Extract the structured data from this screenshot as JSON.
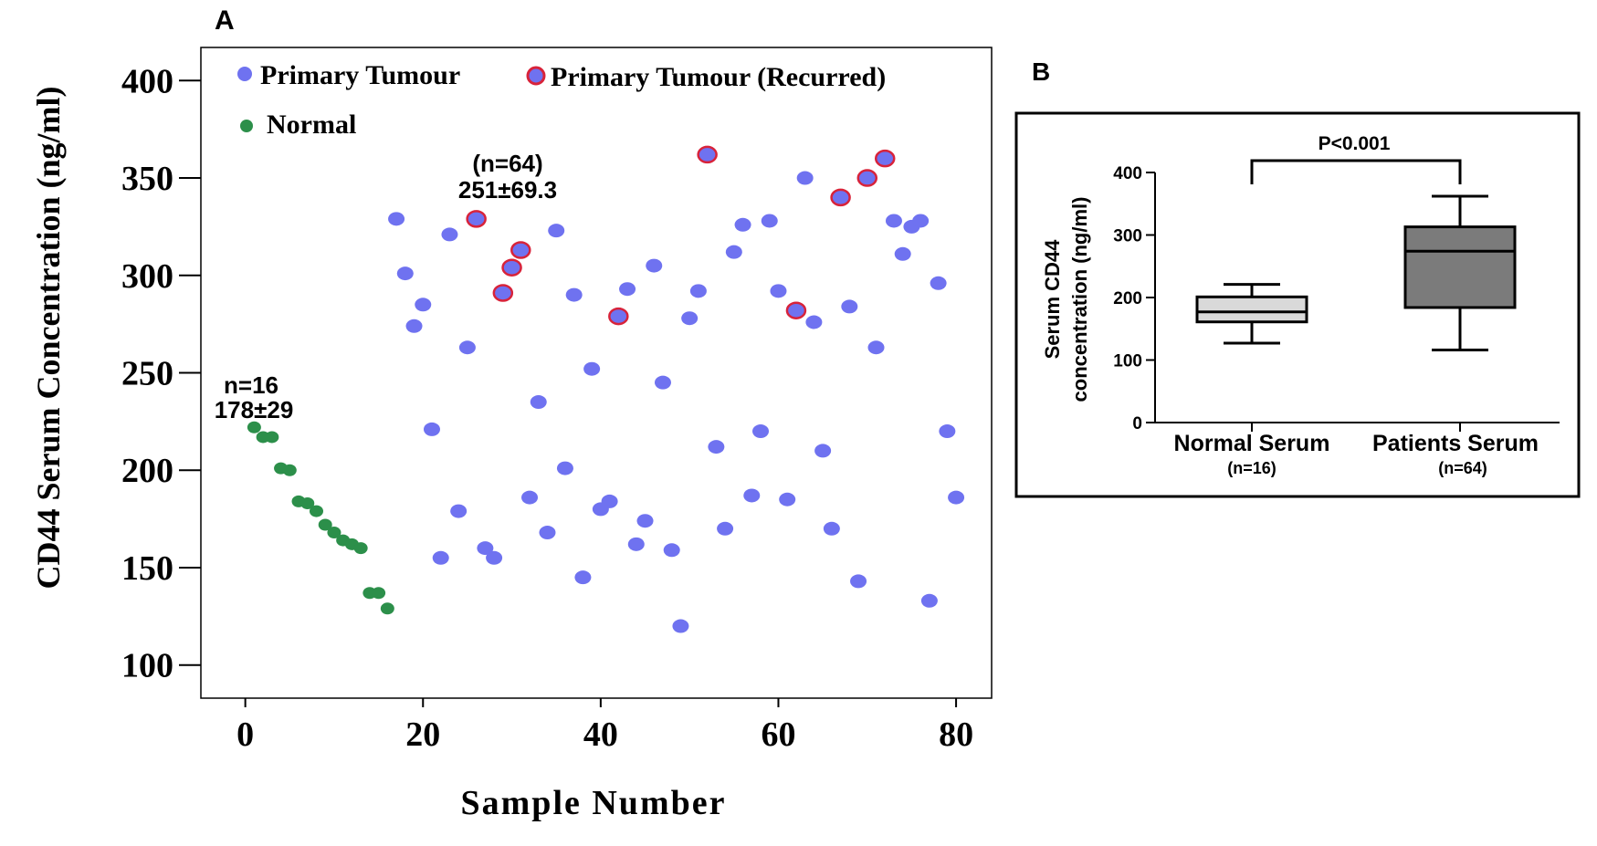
{
  "colors": {
    "primary": "#6f72f0",
    "normal": "#2c8f4a",
    "recurred_edge": "#d8233a",
    "box_normal": "#d9d9d9",
    "box_patients": "#7b7b7b",
    "frame": "#000000"
  },
  "chart_data": [
    {
      "panel_label": "A",
      "type": "scatter",
      "xlabel": "Sample Number",
      "ylabel": "CD44 Serum Concentration (ng/ml)",
      "xlim": [
        -5,
        84
      ],
      "ylim": [
        83,
        417
      ],
      "xticks": [
        0,
        20,
        40,
        60,
        80
      ],
      "yticks": [
        100,
        150,
        200,
        250,
        300,
        350,
        400
      ],
      "legend": {
        "primary": "Primary Tumour",
        "recurred": "Primary Tumour (Recurred)",
        "normal": "Normal"
      },
      "annotations": {
        "normal_n": "n=16",
        "normal_stats": "178±29",
        "tumour_n": "(n=64)",
        "tumour_stats": "251±69.3"
      },
      "series": [
        {
          "name": "Normal",
          "points": [
            [
              1,
              222
            ],
            [
              2,
              217
            ],
            [
              3,
              217
            ],
            [
              4,
              201
            ],
            [
              5,
              200
            ],
            [
              6,
              184
            ],
            [
              7,
              183
            ],
            [
              8,
              179
            ],
            [
              9,
              172
            ],
            [
              10,
              168
            ],
            [
              11,
              164
            ],
            [
              12,
              162
            ],
            [
              13,
              160
            ],
            [
              14,
              137
            ],
            [
              15,
              137
            ],
            [
              16,
              129
            ]
          ]
        },
        {
          "name": "Primary Tumour",
          "points": [
            [
              17,
              329
            ],
            [
              18,
              301
            ],
            [
              19,
              274
            ],
            [
              20,
              285
            ],
            [
              21,
              221
            ],
            [
              22,
              155
            ],
            [
              23,
              321
            ],
            [
              24,
              179
            ],
            [
              25,
              263
            ],
            [
              27,
              160
            ],
            [
              28,
              155
            ],
            [
              32,
              186
            ],
            [
              33,
              235
            ],
            [
              34,
              168
            ],
            [
              35,
              323
            ],
            [
              36,
              201
            ],
            [
              37,
              290
            ],
            [
              38,
              145
            ],
            [
              39,
              252
            ],
            [
              40,
              180
            ],
            [
              41,
              184
            ],
            [
              43,
              293
            ],
            [
              44,
              162
            ],
            [
              45,
              174
            ],
            [
              46,
              305
            ],
            [
              47,
              245
            ],
            [
              48,
              159
            ],
            [
              49,
              120
            ],
            [
              50,
              278
            ],
            [
              51,
              292
            ],
            [
              53,
              212
            ],
            [
              54,
              170
            ],
            [
              55,
              312
            ],
            [
              56,
              326
            ],
            [
              57,
              187
            ],
            [
              58,
              220
            ],
            [
              59,
              328
            ],
            [
              60,
              292
            ],
            [
              61,
              185
            ],
            [
              63,
              350
            ],
            [
              64,
              276
            ],
            [
              65,
              210
            ],
            [
              66,
              170
            ],
            [
              68,
              284
            ],
            [
              69,
              143
            ],
            [
              71,
              263
            ],
            [
              73,
              328
            ],
            [
              74,
              311
            ],
            [
              75,
              325
            ],
            [
              76,
              328
            ],
            [
              77,
              133
            ],
            [
              78,
              296
            ],
            [
              79,
              220
            ],
            [
              80,
              186
            ]
          ]
        },
        {
          "name": "Primary Tumour (Recurred)",
          "points": [
            [
              26,
              329
            ],
            [
              29,
              291
            ],
            [
              30,
              304
            ],
            [
              31,
              313
            ],
            [
              42,
              279
            ],
            [
              52,
              362
            ],
            [
              62,
              282
            ],
            [
              67,
              340
            ],
            [
              70,
              350
            ],
            [
              72,
              360
            ]
          ]
        }
      ]
    },
    {
      "panel_label": "B",
      "type": "box",
      "ylabel_line1": "Serum CD44",
      "ylabel_line2": "concentration (ng/ml)",
      "ylim": [
        0,
        400
      ],
      "yticks": [
        0,
        100,
        200,
        300,
        400
      ],
      "significance": "P<0.001",
      "groups": [
        {
          "name": "Normal Serum",
          "n": "(n=16)",
          "min": 127,
          "q1": 161,
          "median": 177,
          "q3": 201,
          "max": 221
        },
        {
          "name": "Patients Serum",
          "n": "(n=64)",
          "min": 116,
          "q1": 184,
          "median": 274,
          "q3": 313,
          "max": 362
        }
      ]
    }
  ]
}
